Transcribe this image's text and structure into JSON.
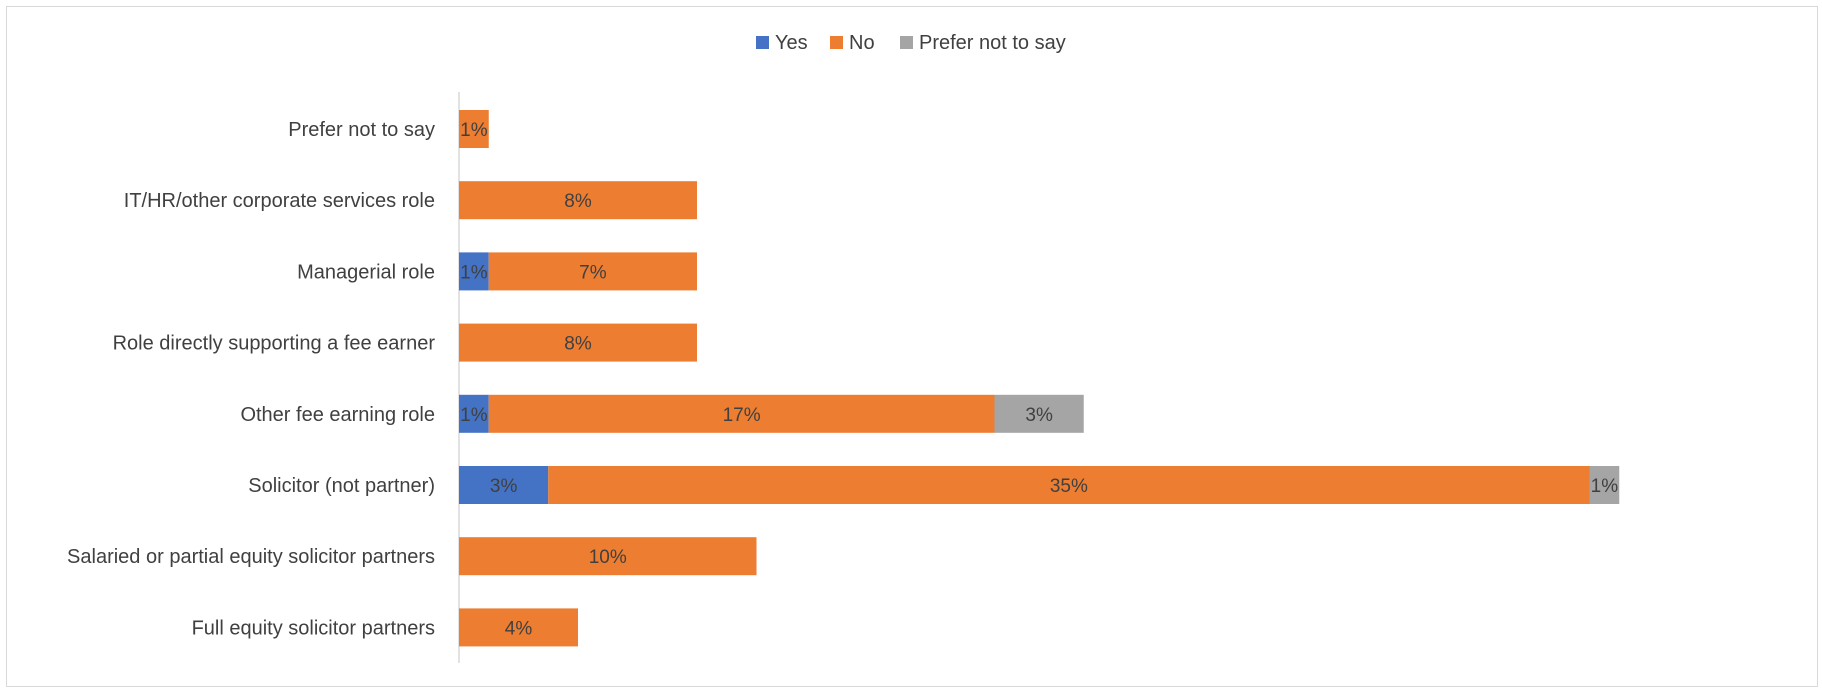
{
  "chart_data": {
    "type": "bar",
    "orientation": "horizontal",
    "stacked": true,
    "categories": [
      "Prefer not to say",
      "IT/HR/other corporate services role",
      "Managerial role",
      "Role directly supporting a fee earner",
      "Other fee earning role",
      "Solicitor (not partner)",
      "Salaried or partial equity solicitor partners",
      "Full equity solicitor partners"
    ],
    "series": [
      {
        "name": "Yes",
        "color": "#4472C4",
        "values": [
          0,
          0,
          1,
          0,
          1,
          3,
          0,
          0
        ],
        "labels": [
          "",
          "",
          "1%",
          "",
          "1%",
          "3%",
          "",
          ""
        ]
      },
      {
        "name": "No",
        "color": "#ED7D31",
        "values": [
          1,
          8,
          7,
          8,
          17,
          35,
          10,
          4
        ],
        "labels": [
          "1%",
          "8%",
          "7%",
          "8%",
          "17%",
          "35%",
          "10%",
          "4%"
        ]
      },
      {
        "name": "Prefer not to say",
        "color": "#A5A5A5",
        "values": [
          0,
          0,
          0,
          0,
          3,
          1,
          0,
          0
        ],
        "labels": [
          "",
          "",
          "",
          "",
          "3%",
          "1%",
          "",
          ""
        ]
      }
    ],
    "value_unit": "%",
    "xlim": [
      0,
      45
    ],
    "legend_position": "top-center",
    "grid": false,
    "title": "",
    "xlabel": "",
    "ylabel": ""
  }
}
